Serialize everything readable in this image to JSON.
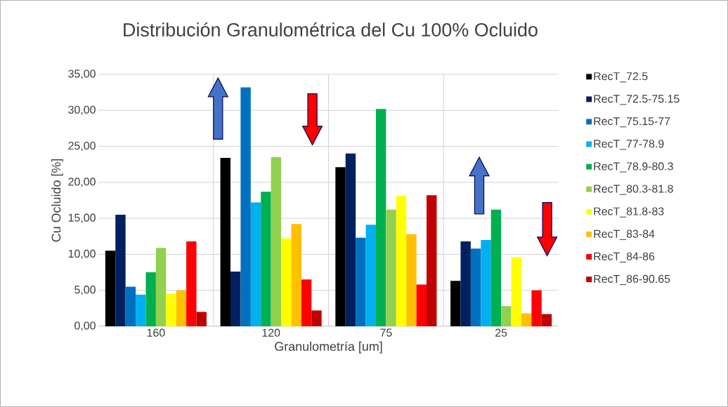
{
  "chart_data": {
    "type": "bar",
    "title": "Distribución Granulométrica del Cu 100% Ocluido",
    "xlabel": "Granulometría [um]",
    "ylabel": "Cu Ocluido [%]",
    "categories": [
      "160",
      "120",
      "75",
      "25"
    ],
    "series": [
      {
        "name": "RecT_72.5",
        "color": "#000000",
        "values": [
          10.5,
          23.4,
          22.1,
          6.3
        ]
      },
      {
        "name": "RecT_72.5-75.15",
        "color": "#002060",
        "values": [
          15.5,
          7.6,
          24.0,
          11.8
        ]
      },
      {
        "name": "RecT_75.15-77",
        "color": "#0070c0",
        "values": [
          5.5,
          33.2,
          12.3,
          10.8
        ]
      },
      {
        "name": "RecT_77-78.9",
        "color": "#00b0f0",
        "values": [
          4.4,
          17.2,
          14.1,
          12.0
        ]
      },
      {
        "name": "RecT_78.9-80.3",
        "color": "#00b050",
        "values": [
          7.5,
          18.7,
          30.2,
          16.2
        ]
      },
      {
        "name": "RecT_80.3-81.8",
        "color": "#92d050",
        "values": [
          10.9,
          23.5,
          16.2,
          2.8
        ]
      },
      {
        "name": "RecT_81.8-83",
        "color": "#ffff00",
        "values": [
          4.5,
          12.2,
          18.1,
          9.6
        ]
      },
      {
        "name": "RecT_83-84",
        "color": "#ffc000",
        "values": [
          5.0,
          14.2,
          12.8,
          1.8
        ]
      },
      {
        "name": "RecT_84-86",
        "color": "#ff0000",
        "values": [
          11.8,
          6.5,
          5.8,
          5.0
        ]
      },
      {
        "name": "RecT_86-90.65",
        "color": "#c00000",
        "values": [
          2.0,
          2.2,
          18.2,
          1.7
        ]
      }
    ],
    "ylim": [
      0,
      35
    ],
    "yticks": [
      {
        "value": 0,
        "label": "0,00"
      },
      {
        "value": 5,
        "label": "5,00"
      },
      {
        "value": 10,
        "label": "10,00"
      },
      {
        "value": 15,
        "label": "15,00"
      },
      {
        "value": 20,
        "label": "20,00"
      },
      {
        "value": 25,
        "label": "25,00"
      },
      {
        "value": 30,
        "label": "30,00"
      },
      {
        "value": 35,
        "label": "35,00"
      }
    ],
    "grid": true,
    "legend": "right"
  }
}
